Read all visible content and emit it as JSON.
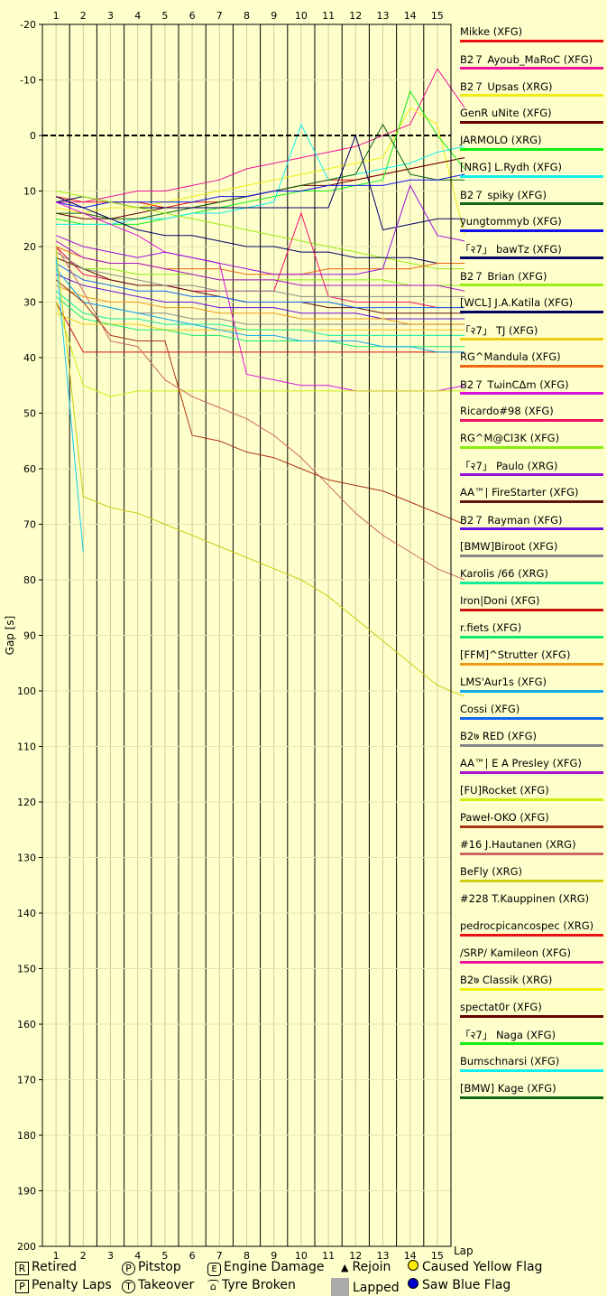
{
  "chart_data": {
    "type": "line",
    "title": "",
    "xlabel": "Lap",
    "ylabel": "Gap [s]",
    "x_ticks": [
      1,
      2,
      3,
      4,
      5,
      6,
      7,
      8,
      9,
      10,
      11,
      12,
      13,
      14,
      15
    ],
    "ylim": [
      -20,
      200
    ],
    "y_ticks": [
      -20,
      -10,
      0,
      10,
      20,
      30,
      40,
      50,
      60,
      70,
      80,
      90,
      100,
      110,
      120,
      130,
      140,
      150,
      160,
      170,
      180,
      190,
      200
    ],
    "y_inverted": true,
    "grid": true,
    "legend_position": "right",
    "series": [
      {
        "name": "Mikke (XFG)",
        "color": "#ee1111",
        "values": [
          11,
          12,
          12,
          12,
          13,
          12,
          12,
          11,
          10,
          9,
          8,
          8,
          7,
          6,
          5,
          4
        ]
      },
      {
        "name": "B2７ Ayoub_MaRoC (XFG)",
        "color": "#ee1199",
        "values": [
          12,
          12,
          11,
          10,
          10,
          9,
          8,
          6,
          5,
          4,
          3,
          2,
          0,
          -2,
          -12,
          -5
        ]
      },
      {
        "name": "B2７ Upsas (XRG)",
        "color": "#eeee11",
        "values": [
          13,
          14,
          13,
          13,
          12,
          11,
          10,
          9,
          8,
          7,
          6,
          5,
          4,
          -5,
          -2,
          18
        ]
      },
      {
        "name": "GenR uNite (XFG)",
        "color": "#660000",
        "values": [
          14,
          15,
          15,
          14,
          13,
          13,
          12,
          11,
          10,
          9,
          9,
          8,
          7,
          6,
          5,
          4
        ]
      },
      {
        "name": "JARMOLO (XRG)",
        "color": "#11ee11",
        "values": [
          15,
          16,
          16,
          16,
          15,
          14,
          13,
          12,
          11,
          10,
          10,
          9,
          8,
          -8,
          0,
          6
        ]
      },
      {
        "name": "[NRG] L.Rydh (XFG)",
        "color": "#11eeee",
        "values": [
          16,
          16,
          16,
          15,
          15,
          14,
          14,
          13,
          12,
          -2,
          8,
          7,
          6,
          5,
          3,
          2
        ]
      },
      {
        "name": "B2７ spiky (XFG)",
        "color": "#116611",
        "values": [
          14,
          14,
          15,
          15,
          14,
          13,
          12,
          11,
          10,
          9,
          8,
          7,
          -2,
          7,
          8,
          8
        ]
      },
      {
        "name": "yungtommyb (XFG)",
        "color": "#1111ee",
        "values": [
          12,
          13,
          12,
          12,
          12,
          12,
          11,
          11,
          10,
          10,
          9,
          9,
          9,
          8,
          8,
          7
        ]
      },
      {
        "name": "「२7」 bawTz (XFG)",
        "color": "#000066",
        "values": [
          12,
          11,
          12,
          13,
          13,
          13,
          13,
          13,
          13,
          13,
          13,
          0,
          17,
          16,
          15,
          15
        ]
      },
      {
        "name": "B2７ Brian (XFG)",
        "color": "#99ee11",
        "values": [
          10,
          11,
          12,
          13,
          14,
          15,
          16,
          17,
          18,
          19,
          20,
          21,
          22,
          23,
          24,
          24
        ]
      },
      {
        "name": "[WCL] J.A.Katila (XFG)",
        "color": "#000066",
        "values": [
          11,
          13,
          15,
          17,
          18,
          18,
          19,
          20,
          20,
          21,
          21,
          22,
          22,
          22,
          23,
          23
        ]
      },
      {
        "name": "「२7」 TJ (XFG)",
        "color": "#eecc11",
        "values": [
          32,
          34,
          34,
          34,
          35,
          35,
          35,
          35,
          35,
          35,
          35,
          35,
          35,
          35,
          35,
          35
        ]
      },
      {
        "name": "RG^Mandula (XFG)",
        "color": "#ee6611",
        "values": [
          20,
          22,
          23,
          23,
          24,
          24,
          24,
          25,
          25,
          25,
          24,
          24,
          24,
          24,
          23,
          23
        ]
      },
      {
        "name": "B2７ TωinCΔm (XFG)",
        "color": "#dd11dd",
        "values": [
          12,
          14,
          16,
          18,
          21,
          22,
          23,
          43,
          44,
          45,
          45,
          46,
          46,
          46,
          46,
          45
        ]
      },
      {
        "name": "Ricardo#98 (XFG)",
        "color": "#ee1166",
        "values": [
          20,
          25,
          26,
          27,
          27,
          28,
          28,
          28,
          28,
          14,
          29,
          30,
          30,
          30,
          31,
          31
        ]
      },
      {
        "name": "RG^M@Cl3K (XFG)",
        "color": "#88ee11",
        "values": [
          22,
          24,
          24,
          25,
          25,
          25,
          26,
          26,
          26,
          26,
          26,
          26,
          26,
          27,
          27,
          27
        ]
      },
      {
        "name": "「२7」 Paulo (XRG)",
        "color": "#9911dd",
        "values": [
          18,
          20,
          21,
          22,
          21,
          22,
          23,
          24,
          25,
          25,
          25,
          25,
          24,
          9,
          18,
          19
        ]
      },
      {
        "name": "AA™| FireStarter (XFG)",
        "color": "#661111",
        "values": [
          22,
          24,
          26,
          27,
          27,
          28,
          29,
          30,
          30,
          30,
          31,
          31,
          32,
          32,
          32,
          32
        ]
      },
      {
        "name": "B2７ Rayman (XFG)",
        "color": "#6611dd",
        "values": [
          25,
          27,
          28,
          29,
          30,
          30,
          31,
          31,
          31,
          32,
          32,
          32,
          33,
          33,
          33,
          33
        ]
      },
      {
        "name": "[BMW]Biroot (XFG)",
        "color": "#888888",
        "values": [
          26,
          30,
          31,
          32,
          32,
          33,
          33,
          34,
          34,
          34,
          34,
          34,
          34,
          34,
          34,
          34
        ]
      },
      {
        "name": "Karolis /66 (XRG)",
        "color": "#11ee99",
        "values": [
          28,
          32,
          33,
          33,
          34,
          34,
          34,
          35,
          35,
          35,
          36,
          36,
          36,
          36,
          36,
          36
        ]
      },
      {
        "name": "Iron|Doni (XFG)",
        "color": "#cc1111",
        "values": [
          30,
          39,
          39,
          39,
          39,
          39,
          39,
          39,
          39,
          39,
          39,
          39,
          39,
          39,
          39,
          39
        ]
      },
      {
        "name": "r.fiets (XFG)",
        "color": "#11ee66",
        "values": [
          29,
          33,
          34,
          35,
          35,
          36,
          36,
          37,
          37,
          37,
          37,
          38,
          38,
          38,
          38,
          38
        ]
      },
      {
        "name": "[FFM]^Strutter (XFG)",
        "color": "#ee9911",
        "values": [
          27,
          29,
          30,
          30,
          31,
          31,
          32,
          32,
          32,
          33,
          33,
          33,
          33,
          34,
          34,
          34
        ]
      },
      {
        "name": "LMS'Aur1s (XFG)",
        "color": "#11aaee",
        "values": [
          24,
          30,
          31,
          32,
          33,
          34,
          35,
          36,
          36,
          37,
          37,
          37,
          38,
          38,
          39,
          39
        ]
      },
      {
        "name": "Cossi (XFG)",
        "color": "#1166ee",
        "values": [
          23,
          26,
          27,
          28,
          28,
          29,
          29,
          30,
          30,
          30,
          30,
          31,
          31,
          31,
          31,
          31
        ]
      },
      {
        "name": "B2７ RED (XFG)",
        "color": "#888888",
        "values": [
          21,
          24,
          25,
          26,
          27,
          27,
          28,
          28,
          28,
          29,
          29,
          29,
          29,
          29,
          29,
          29
        ]
      },
      {
        "name": "AA™| E A Presley (XFG)",
        "color": "#aa11cc",
        "values": [
          19,
          22,
          23,
          23,
          24,
          25,
          26,
          26,
          26,
          27,
          27,
          27,
          27,
          27,
          27,
          28
        ]
      },
      {
        "name": "[FU]Rocket (XFG)",
        "color": "#ccee11",
        "values": [
          30,
          45,
          47,
          46,
          46,
          46,
          46,
          46,
          46,
          46,
          46,
          46,
          46,
          46,
          46,
          46
        ]
      },
      {
        "name": "Paweł-OKO (XFG)",
        "color": "#aa3311",
        "values": [
          26,
          30,
          36,
          37,
          37,
          54,
          55,
          57,
          58,
          60,
          62,
          63,
          64,
          66,
          68,
          70
        ]
      },
      {
        "name": "#16 J.Hautanen (XRG)",
        "color": "#cc6666",
        "values": [
          20,
          28,
          37,
          38,
          44,
          47,
          49,
          51,
          54,
          58,
          63,
          68,
          72,
          75,
          78,
          80
        ]
      },
      {
        "name": "BeFly (XRG)",
        "color": "#cccc11",
        "values": [
          20,
          65,
          67,
          68,
          70,
          72,
          74,
          76,
          78,
          80,
          83,
          87,
          91,
          95,
          99,
          101
        ]
      },
      {
        "name": "#228 T.Kauppinen (XRG)",
        "color": "#11ccee",
        "values": [
          22,
          75
        ]
      },
      {
        "name": "pedrocpicancospec (XRG)",
        "color": "#ee1111",
        "values": []
      },
      {
        "name": "/SRP/ Kamileon (XFG)",
        "color": "#ee1199",
        "values": []
      },
      {
        "name": "B2७ Classik (XRG)",
        "color": "#eeee11",
        "values": []
      },
      {
        "name": "spectat0r (XFG)",
        "color": "#660000",
        "values": []
      },
      {
        "name": "「२7」 Naga (XFG)",
        "color": "#11ee11",
        "values": []
      },
      {
        "name": "Bumschnarsi (XFG)",
        "color": "#11eeee",
        "values": []
      },
      {
        "name": "[BMW] Kage (XFG)",
        "color": "#116611",
        "values": []
      }
    ],
    "x_start": 0.5
  },
  "legend": [
    {
      "name": "Mikke (XFG)",
      "color": "#ee1111"
    },
    {
      "name": "B2７ Ayoub_MaRoC (XFG)",
      "color": "#ee1199"
    },
    {
      "name": "B2７ Upsas (XRG)",
      "color": "#eeee11"
    },
    {
      "name": "GenR uNite (XFG)",
      "color": "#660000"
    },
    {
      "name": "JARMOLO (XRG)",
      "color": "#11ee11"
    },
    {
      "name": "[NRG] L.Rydh (XFG)",
      "color": "#11eeee"
    },
    {
      "name": "B2７ spiky (XFG)",
      "color": "#116611"
    },
    {
      "name": "yungtommyb (XFG)",
      "color": "#1111ee"
    },
    {
      "name": "「२7」 bawTz (XFG)",
      "color": "#000066"
    },
    {
      "name": "B2７ Brian (XFG)",
      "color": "#99ee11"
    },
    {
      "name": "[WCL] J.A.Katila (XFG)",
      "color": "#000066"
    },
    {
      "name": "「२7」 TJ (XFG)",
      "color": "#eecc11"
    },
    {
      "name": "RG^Mandula (XFG)",
      "color": "#ee6611"
    },
    {
      "name": "B2７ TωinCΔm (XFG)",
      "color": "#dd11dd"
    },
    {
      "name": "Ricardo#98 (XFG)",
      "color": "#ee1166"
    },
    {
      "name": "RG^M@Cl3K (XFG)",
      "color": "#88ee11"
    },
    {
      "name": "「२7」 Paulo (XRG)",
      "color": "#9911dd"
    },
    {
      "name": "AA™| FireStarter (XFG)",
      "color": "#661111"
    },
    {
      "name": "B2７ Rayman (XFG)",
      "color": "#6611dd"
    },
    {
      "name": "[BMW]Biroot (XFG)",
      "color": "#888888"
    },
    {
      "name": "Karolis /66 (XRG)",
      "color": "#11ee99"
    },
    {
      "name": "Iron|Doni (XFG)",
      "color": "#cc1111"
    },
    {
      "name": "r.fiets (XFG)",
      "color": "#11ee66"
    },
    {
      "name": "[FFM]^Strutter (XFG)",
      "color": "#ee9911"
    },
    {
      "name": "LMS'Aur1s (XFG)",
      "color": "#11aaee"
    },
    {
      "name": "Cossi (XFG)",
      "color": "#1166ee"
    },
    {
      "name": "B2७ RED (XFG)",
      "color": "#888888"
    },
    {
      "name": "AA™| E A Presley (XFG)",
      "color": "#aa11cc"
    },
    {
      "name": "[FU]Rocket (XFG)",
      "color": "#ccee11"
    },
    {
      "name": "Paweł-OKO (XFG)",
      "color": "#aa3311"
    },
    {
      "name": "#16 J.Hautanen (XRG)",
      "color": "#cc6666"
    },
    {
      "name": "BeFly (XRG)",
      "color": "#cccc11"
    },
    {
      "name": "#228 T.Kauppinen (XRG)",
      "color": "#ffffcc"
    },
    {
      "name": "pedrocpicancospec (XRG)",
      "color": "#ee1111"
    },
    {
      "name": "/SRP/ Kamileon (XFG)",
      "color": "#ee1199"
    },
    {
      "name": "B2७ Classik (XRG)",
      "color": "#eeee11"
    },
    {
      "name": "spectat0r (XFG)",
      "color": "#660000"
    },
    {
      "name": "「२7」 Naga (XFG)",
      "color": "#11ee11"
    },
    {
      "name": "Bumschnarsi (XFG)",
      "color": "#11eeee"
    },
    {
      "name": "[BMW] Kage (XFG)",
      "color": "#116611"
    }
  ],
  "key": {
    "retired": "Retired",
    "penalty": "Penalty Laps",
    "pitstop": "Pitstop",
    "takeover": "Takeover",
    "engine": "Engine Damage",
    "tyre": "Tyre Broken",
    "rejoin": "Rejoin",
    "lapped": "Lapped",
    "yellow": "Caused Yellow Flag",
    "blue": "Saw Blue Flag",
    "sym_r": "R",
    "sym_p": "P",
    "sym_e": "E",
    "sym_t": "T"
  },
  "colors": {
    "background": "#ffffcc",
    "zero_line": "#000000",
    "lapped": "#aaaaaa",
    "yellow_flag": "#ffee00",
    "blue_flag": "#0000cc"
  }
}
